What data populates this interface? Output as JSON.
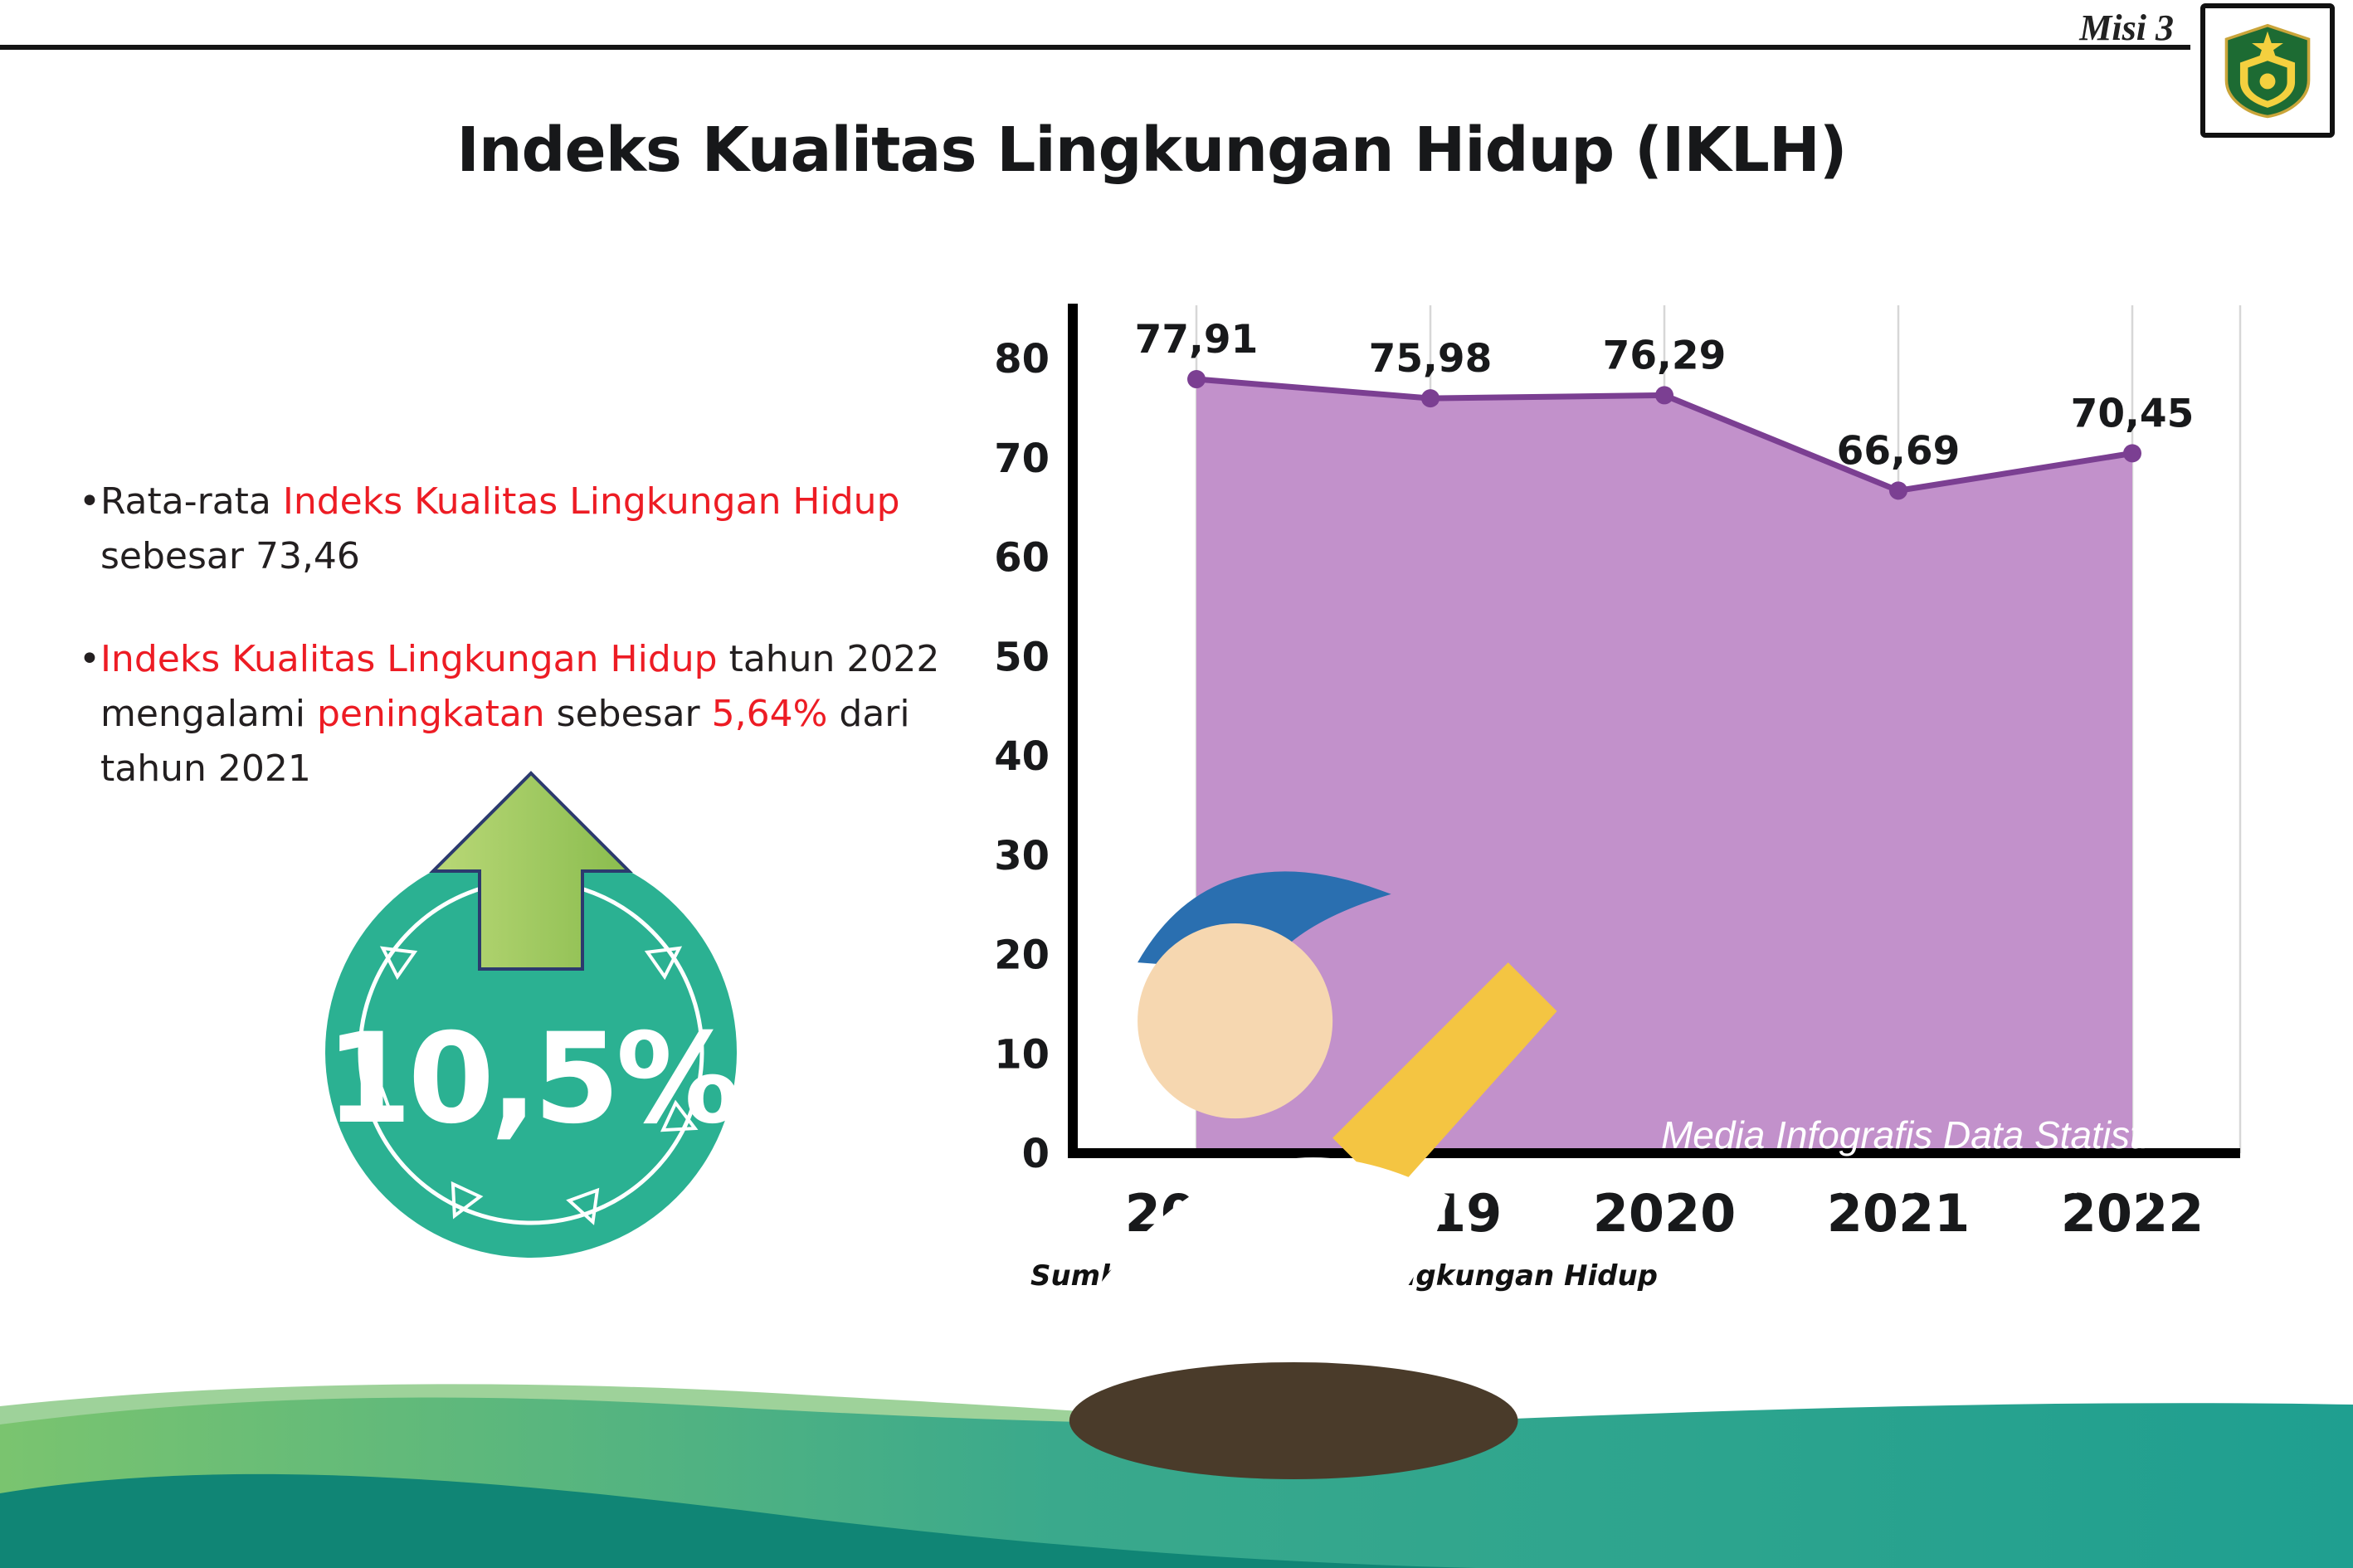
{
  "page": {
    "misi_label": "Misi 3"
  },
  "title": "Indeks Kualitas Lingkungan Hidup (IKLH)",
  "bullet_char": "•",
  "bullets": [
    {
      "parts": [
        {
          "t": "Rata-rata ",
          "c": "dark"
        },
        {
          "t": "Indeks Kualitas Lingkungan Hidup",
          "c": "red"
        },
        {
          "t": " sebesar 73,46",
          "c": "dark"
        }
      ]
    },
    {
      "parts": [
        {
          "t": "Indeks Kualitas Lingkungan Hidup",
          "c": "red"
        },
        {
          "t": " tahun 2022 mengalami ",
          "c": "dark"
        },
        {
          "t": "peningkatan",
          "c": "red"
        },
        {
          "t": " sebesar ",
          "c": "dark"
        },
        {
          "t": "5,64%",
          "c": "red"
        },
        {
          "t": " dari tahun 2021",
          "c": "dark"
        }
      ]
    }
  ],
  "increase_badge": {
    "value": "10,5%"
  },
  "chart_data": {
    "type": "area",
    "title": "Indeks Kualitas Lingkungan Hidup (IKLH)",
    "categories": [
      "2018",
      "2019",
      "2020",
      "2021",
      "2022"
    ],
    "values": [
      77.91,
      75.98,
      76.29,
      66.69,
      70.45
    ],
    "point_labels": [
      "77,91",
      "75,98",
      "76,29",
      "66,69",
      "70,45"
    ],
    "ylim": [
      0,
      80
    ],
    "yticks": [
      0,
      10,
      20,
      30,
      40,
      50,
      60,
      70,
      80
    ],
    "grid": "vertical-light",
    "legend": "none",
    "area_fill": "#c291cb",
    "line_color": "#7b3f92",
    "marker_color": "#7b3f92",
    "source_note": "Sumber Data : Dinas Lingkungan Hidup"
  },
  "footer": {
    "caption": "Media Infografis Data Statistik Sektoral Kabupaten Madiun |"
  },
  "colors": {
    "accent_red": "#ed1c24",
    "badge_teal": "#2bb192",
    "arrow_green": "#a3cb5f",
    "footer_green": "#7ac46f",
    "footer_teal": "#1f9f90",
    "footer_dark_teal": "#108575"
  }
}
